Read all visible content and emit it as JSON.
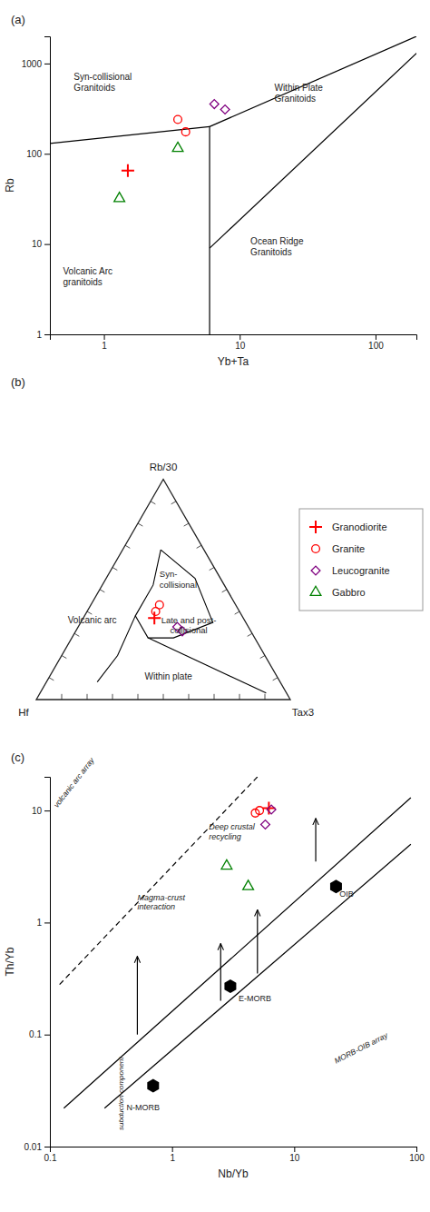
{
  "chart_data": [
    {
      "type": "scatter",
      "title": "(a)",
      "xlabel": "Yb+Ta",
      "ylabel": "Rb",
      "log": true,
      "grid": false,
      "xlim": [
        0.4,
        200
      ],
      "ylim": [
        1,
        2000
      ],
      "xticks": [
        1,
        10,
        100
      ],
      "yticks": [
        1,
        10,
        100,
        1000
      ],
      "series": [
        {
          "type": "line",
          "color": "black",
          "line_style": "solid",
          "x": [
            0.4,
            6
          ],
          "values": [
            130,
            200
          ]
        },
        {
          "type": "line",
          "color": "black",
          "line_style": "solid",
          "x": [
            6,
            200
          ],
          "values": [
            200,
            2000
          ]
        },
        {
          "type": "line",
          "color": "black",
          "line_style": "solid",
          "x": [
            6,
            6
          ],
          "values": [
            1,
            200
          ]
        },
        {
          "type": "line",
          "color": "black",
          "line_style": "solid",
          "x": [
            6,
            200
          ],
          "values": [
            9,
            1300
          ]
        },
        {
          "type": "scatter",
          "marker": "plus",
          "color": "red",
          "x": [
            1.5
          ],
          "values": [
            65
          ]
        },
        {
          "type": "scatter",
          "marker": "circle",
          "color": "red",
          "x": [
            3.5,
            4.0
          ],
          "values": [
            240,
            175
          ]
        },
        {
          "type": "scatter",
          "marker": "diamond",
          "color": "purple",
          "x": [
            6.5,
            7.8
          ],
          "values": [
            355,
            310
          ]
        },
        {
          "type": "scatter",
          "marker": "triangle",
          "color": "#008000",
          "x": [
            1.3,
            3.5
          ],
          "values": [
            32,
            115
          ]
        }
      ],
      "annotations": [
        {
          "text": "Syn-collisional\nGranitoids",
          "x": 0.6,
          "y": 800
        },
        {
          "text": "Within Plate\nGranitoids",
          "x": 18,
          "y": 600
        },
        {
          "text": "Volcanic Arc\ngranitoids",
          "x": 0.5,
          "y": 5.5
        },
        {
          "text": "Ocean Ridge\nGranitoids",
          "x": 12,
          "y": 12
        }
      ]
    },
    {
      "type": "ternary",
      "title": "(b)",
      "axis_labels": [
        "Rb/30",
        "Hf",
        "Tax3"
      ],
      "ticks": [
        0.1,
        0.2,
        0.3,
        0.4,
        0.5,
        0.6,
        0.7,
        0.8,
        0.9
      ],
      "tick_labels": false,
      "legend": "right",
      "series": [
        {
          "type": "line",
          "color": "black",
          "line_style": "solid",
          "a": [
            0.68,
            0.55,
            0.35,
            0.28,
            0.28,
            0.38,
            0.52,
            0.68
          ],
          "b": [
            0.17,
            0.1,
            0.13,
            0.32,
            0.42,
            0.42,
            0.28,
            0.17
          ],
          "c": [
            0.15,
            0.35,
            0.52,
            0.4,
            0.3,
            0.2,
            0.2,
            0.15
          ]
        },
        {
          "type": "line",
          "color": "black",
          "line_style": "solid",
          "a": [
            0.08,
            0.2,
            0.38
          ],
          "b": [
            0.72,
            0.58,
            0.42
          ],
          "c": [
            0.2,
            0.22,
            0.2
          ]
        },
        {
          "type": "line",
          "color": "black",
          "line_style": "solid",
          "a": [
            0.28,
            0.03
          ],
          "b": [
            0.42,
            0.08
          ],
          "c": [
            0.3,
            0.89
          ]
        },
        {
          "name": "Granodiorite",
          "type": "scatter",
          "marker": "plus",
          "color": "red",
          "a": [
            0.37
          ],
          "b": [
            0.35
          ],
          "c": [
            0.28
          ]
        },
        {
          "name": "Granite",
          "type": "scatter",
          "marker": "circle",
          "color": "red",
          "a": [
            0.43,
            0.4
          ],
          "b": [
            0.3,
            0.33
          ],
          "c": [
            0.27,
            0.27
          ]
        },
        {
          "name": "Leucogranite",
          "type": "scatter",
          "marker": "diamond",
          "color": "purple",
          "a": [
            0.33,
            0.31
          ],
          "b": [
            0.28,
            0.27
          ],
          "c": [
            0.39,
            0.42
          ]
        },
        {
          "name": "Gabbro",
          "type": "scatter",
          "marker": "triangle",
          "color": "#008000",
          "a": [],
          "b": [],
          "c": []
        }
      ],
      "annotations": [
        {
          "text": "Volcanic arc",
          "x": 0.22,
          "y": 0.3
        },
        {
          "text": "Syn-\ncollisional",
          "x": 0.485,
          "y": 0.44
        },
        {
          "text": "Late and post-\ncollisional",
          "x": 0.6,
          "y": 0.26
        },
        {
          "text": "Within plate",
          "x": 0.52,
          "y": 0.08
        }
      ]
    },
    {
      "type": "scatter",
      "title": "(c)",
      "xlabel": "Nb/Yb",
      "ylabel": "Th/Yb",
      "log": true,
      "grid": false,
      "xlim": [
        0.1,
        100
      ],
      "ylim": [
        0.01,
        20
      ],
      "xticks": [
        0.1,
        1,
        10,
        100
      ],
      "yticks": [
        0.01,
        0.1,
        1,
        10
      ],
      "series": [
        {
          "type": "line",
          "color": "black",
          "line_style": "solid",
          "x": [
            0.13,
            90
          ],
          "values": [
            0.022,
            13
          ]
        },
        {
          "type": "line",
          "color": "black",
          "line_style": "solid",
          "x": [
            0.28,
            90
          ],
          "values": [
            0.022,
            5.0
          ]
        },
        {
          "type": "line",
          "color": "black",
          "line_style": "dashed",
          "x": [
            0.12,
            5
          ],
          "values": [
            0.28,
            20
          ]
        },
        {
          "type": "arrow",
          "color": "black",
          "line_style": "solid",
          "x": [
            2.5,
            2.5
          ],
          "values": [
            0.2,
            0.65
          ]
        },
        {
          "type": "arrow",
          "color": "black",
          "line_style": "solid",
          "x": [
            5.0,
            5.0
          ],
          "values": [
            0.35,
            1.3
          ]
        },
        {
          "type": "arrow",
          "color": "black",
          "line_style": "solid",
          "x": [
            15,
            15
          ],
          "values": [
            3.5,
            8.5
          ]
        },
        {
          "type": "arrow",
          "color": "black",
          "line_style": "solid",
          "x": [
            0.52,
            0.52
          ],
          "values": [
            0.1,
            0.5
          ]
        },
        {
          "type": "scatter",
          "marker": "hexagon",
          "color": "black",
          "x": [
            0.7,
            3.0,
            22
          ],
          "values": [
            0.035,
            0.27,
            2.1
          ]
        },
        {
          "type": "scatter",
          "marker": "plus",
          "color": "red",
          "x": [
            6.2
          ],
          "values": [
            10.5
          ]
        },
        {
          "type": "scatter",
          "marker": "circle",
          "color": "red",
          "x": [
            4.8,
            5.2
          ],
          "values": [
            9.5,
            10.0
          ]
        },
        {
          "type": "scatter",
          "marker": "diamond",
          "color": "purple",
          "x": [
            5.8,
            6.5
          ],
          "values": [
            7.5,
            10.2
          ]
        },
        {
          "type": "scatter",
          "marker": "triangle",
          "color": "#008000",
          "x": [
            2.8,
            4.2
          ],
          "values": [
            3.2,
            2.1
          ]
        }
      ],
      "annotations": [
        {
          "text": "N-MORB",
          "x": 0.58,
          "y": 0.024
        },
        {
          "text": "E-MORB",
          "x": 3.5,
          "y": 0.2
        },
        {
          "text": "OIB",
          "x": 23.5,
          "y": 1.7
        },
        {
          "text": "volcanic arc array",
          "x": 0.115,
          "y": 10.5
        },
        {
          "text": "Deep crustal\nrecycling",
          "x": 2.0,
          "y": 5.5
        },
        {
          "text": "Magma-crust\ninteraction",
          "x": 0.52,
          "y": 1.3
        },
        {
          "text": "subduction component",
          "x": 0.38,
          "y": 0.014
        },
        {
          "text": "MORB-OIB array",
          "x": 22,
          "y": 0.055
        }
      ]
    }
  ]
}
